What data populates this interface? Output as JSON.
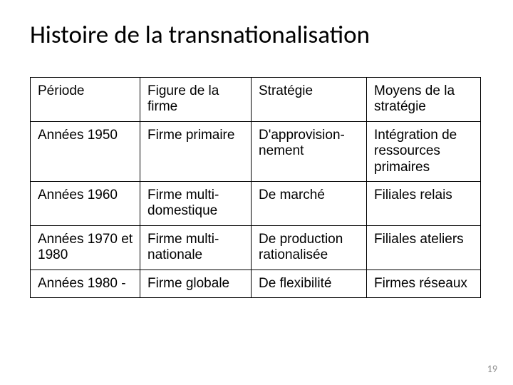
{
  "title": "Histoire de la transnationalisation",
  "page_number": "19",
  "table": {
    "header": {
      "c0": "Période",
      "c1": "Figure de la firme",
      "c2": "Stratégie",
      "c3": "Moyens de la stratégie"
    },
    "rows": [
      {
        "c0": "Années 1950",
        "c1": "Firme primaire",
        "c2": "D'approvision-nement",
        "c3": "Intégration de ressources primaires"
      },
      {
        "c0": "Années 1960",
        "c1": "Firme multi-domestique",
        "c2": "De marché",
        "c3": "Filiales relais"
      },
      {
        "c0": "Années 1970 et 1980",
        "c1": "Firme multi-nationale",
        "c2": "De production rationalisée",
        "c3": "Filiales ateliers"
      },
      {
        "c0": "Années 1980 -",
        "c1": "Firme globale",
        "c2": " De flexibilité",
        "c3": "Firmes réseaux"
      }
    ]
  }
}
